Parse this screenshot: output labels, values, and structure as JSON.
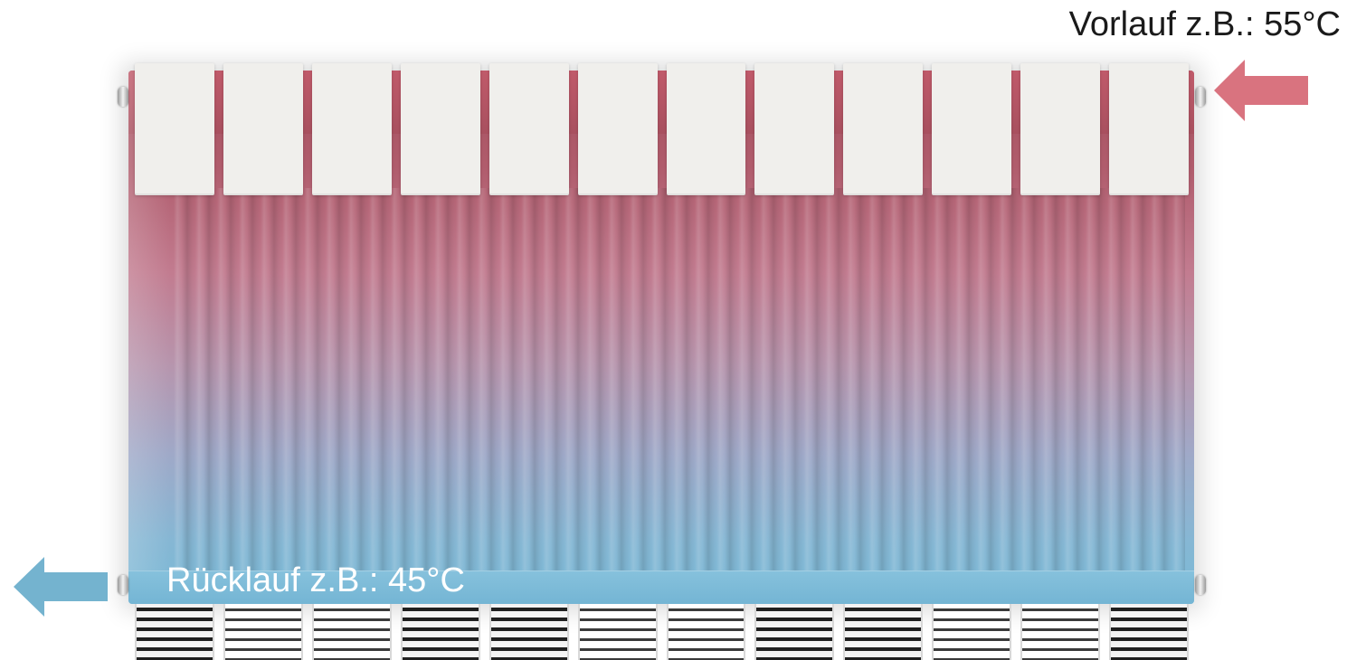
{
  "supply": {
    "label": "Vorlauf z.B.: 55°C",
    "color": "#d9737f",
    "direction": "into radiator (top-right)"
  },
  "return": {
    "label": "Rücklauf z.B.: 45°C",
    "color": "#74b3cf",
    "direction": "out of radiator (bottom-left)"
  },
  "radiator": {
    "hot_color": "#a5515f",
    "cold_color": "#7ab9d6",
    "cover_color": "#f0efec",
    "cover_count": 12,
    "grille_count": 12
  }
}
